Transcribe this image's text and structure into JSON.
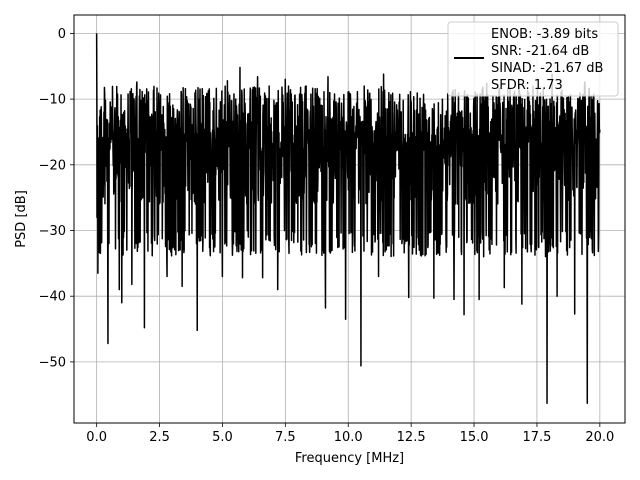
{
  "chart_data": {
    "type": "line",
    "title": "",
    "xlabel": "Frequency [MHz]",
    "ylabel": "PSD [dB]",
    "xlim": [
      -0.9,
      21.0
    ],
    "ylim": [
      -59.3,
      2.8
    ],
    "xticks": [
      0.0,
      2.5,
      5.0,
      7.5,
      10.0,
      12.5,
      15.0,
      17.5,
      20.0
    ],
    "xtick_labels": [
      "0.0",
      "2.5",
      "5.0",
      "7.5",
      "10.0",
      "12.5",
      "15.0",
      "17.5",
      "20.0"
    ],
    "yticks": [
      0,
      -10,
      -20,
      -30,
      -40,
      -50
    ],
    "ytick_labels": [
      "0",
      "−10",
      "−20",
      "−30",
      "−40",
      "−50"
    ],
    "grid": true,
    "legend": {
      "placement": "top-right",
      "entries": [
        "ENOB: -3.89 bits",
        "SNR: -21.64 dB",
        "SINAD: -21.67 dB",
        "SFDR: 1.73"
      ]
    },
    "series": [
      {
        "color": "#000000",
        "description": "noise-like PSD spanning 0 to 20 MHz, mostly between -10 and -30 dB",
        "peak": {
          "x": 0.0,
          "y": 0.0
        },
        "noise_band": [
          -30,
          -10
        ],
        "spikes_up": [
          {
            "x": 5.7,
            "y": -5.2
          },
          {
            "x": 11.2,
            "y": -5.2
          },
          {
            "x": 11.4,
            "y": -6.2
          },
          {
            "x": 18.1,
            "y": -6.2
          },
          {
            "x": 6.4,
            "y": -6.6
          },
          {
            "x": 9.2,
            "y": -6.6
          },
          {
            "x": 7.5,
            "y": -7.0
          },
          {
            "x": 1.6,
            "y": -7.4
          },
          {
            "x": 5.2,
            "y": -7.2
          },
          {
            "x": 15.5,
            "y": -7.6
          },
          {
            "x": 16.8,
            "y": -7.8
          },
          {
            "x": 19.4,
            "y": -7.4
          }
        ],
        "spikes_down": [
          {
            "x": 0.05,
            "y": -36.5
          },
          {
            "x": 0.45,
            "y": -47.2
          },
          {
            "x": 0.9,
            "y": -39.0
          },
          {
            "x": 1.0,
            "y": -41.0
          },
          {
            "x": 1.4,
            "y": -38.2
          },
          {
            "x": 1.9,
            "y": -44.8
          },
          {
            "x": 2.8,
            "y": -37.0
          },
          {
            "x": 3.4,
            "y": -38.5
          },
          {
            "x": 4.0,
            "y": -45.2
          },
          {
            "x": 5.0,
            "y": -37.0
          },
          {
            "x": 5.8,
            "y": -37.2
          },
          {
            "x": 6.6,
            "y": -37.2
          },
          {
            "x": 7.2,
            "y": -39.0
          },
          {
            "x": 9.1,
            "y": -41.8
          },
          {
            "x": 9.9,
            "y": -43.5
          },
          {
            "x": 10.5,
            "y": -50.6
          },
          {
            "x": 11.2,
            "y": -37.0
          },
          {
            "x": 12.4,
            "y": -40.2
          },
          {
            "x": 13.4,
            "y": -40.3
          },
          {
            "x": 14.2,
            "y": -40.5
          },
          {
            "x": 14.6,
            "y": -42.8
          },
          {
            "x": 15.2,
            "y": -40.5
          },
          {
            "x": 16.2,
            "y": -38.7
          },
          {
            "x": 16.9,
            "y": -41.2
          },
          {
            "x": 17.9,
            "y": -56.3
          },
          {
            "x": 18.3,
            "y": -40.0
          },
          {
            "x": 19.0,
            "y": -42.7
          },
          {
            "x": 19.5,
            "y": -56.3
          }
        ]
      }
    ]
  }
}
